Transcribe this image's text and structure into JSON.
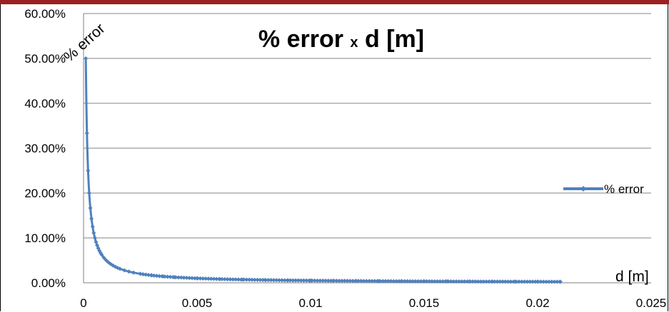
{
  "chart_data": {
    "type": "line",
    "title": "% error x d [m]",
    "title_main_1": "% error ",
    "title_sub": "x",
    "title_main_2": " d [m]",
    "xlabel": "d [m]",
    "ylabel": "% error",
    "xlim": [
      0,
      0.025
    ],
    "ylim": [
      0,
      0.6
    ],
    "x_ticks": [
      "0",
      "0.005",
      "0.01",
      "0.015",
      "0.02",
      "0.025"
    ],
    "y_ticks": [
      "0.00%",
      "10.00%",
      "20.00%",
      "30.00%",
      "40.00%",
      "50.00%",
      "60.00%"
    ],
    "grid": true,
    "legend_position": "right",
    "series": [
      {
        "name": "% error",
        "color": "#4f81bd",
        "marker": "diamond",
        "x": [
          0.0001,
          0.00015,
          0.0002,
          0.00025,
          0.0003,
          0.00035,
          0.0004,
          0.00045,
          0.0005,
          0.00055,
          0.0006,
          0.00065,
          0.0007,
          0.00075,
          0.0008,
          0.0009,
          0.001,
          0.0011,
          0.0012,
          0.0013,
          0.0014,
          0.0015,
          0.0016,
          0.0018,
          0.002,
          0.0022,
          0.0025,
          0.003,
          0.0035,
          0.004,
          0.005,
          0.006,
          0.007,
          0.008,
          0.009,
          0.01,
          0.011,
          0.012,
          0.013,
          0.014,
          0.015,
          0.016,
          0.017,
          0.018,
          0.019,
          0.02,
          0.021
        ],
        "y": [
          0.5,
          0.3333,
          0.25,
          0.2,
          0.1667,
          0.1429,
          0.125,
          0.1111,
          0.1,
          0.0909,
          0.0833,
          0.0769,
          0.0714,
          0.0667,
          0.0625,
          0.0556,
          0.05,
          0.0455,
          0.0417,
          0.0385,
          0.0357,
          0.0333,
          0.0313,
          0.0278,
          0.025,
          0.0227,
          0.02,
          0.0167,
          0.0143,
          0.0125,
          0.01,
          0.0083,
          0.0071,
          0.0063,
          0.0056,
          0.005,
          0.0045,
          0.0042,
          0.0038,
          0.0036,
          0.0033,
          0.0031,
          0.0029,
          0.0028,
          0.0026,
          0.0025,
          0.0024
        ]
      }
    ]
  },
  "colors": {
    "top_bar": "#9c1f23",
    "series": "#4f81bd",
    "grid": "#808080"
  }
}
